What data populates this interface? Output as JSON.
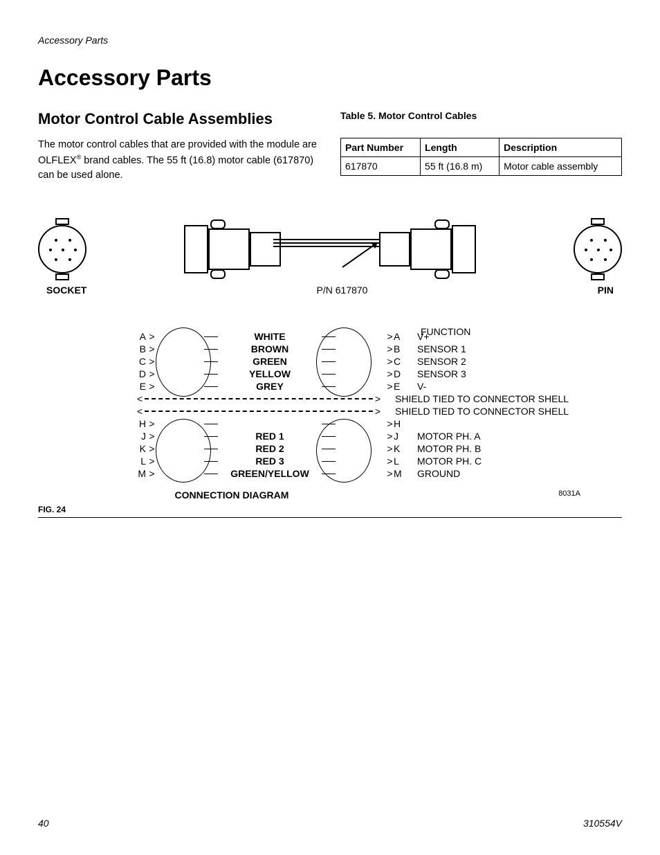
{
  "header_label": "Accessory Parts",
  "h1": "Accessory Parts",
  "h2": "Motor Control Cable Assemblies",
  "paragraph_pre": "The motor control cables that are provided with the module are OLFLEX",
  "paragraph_sup": "®",
  "paragraph_post": " brand cables. The 55 ft (16.8) motor cable (617870) can be used alone.",
  "table_caption": "Table 5. Motor Control Cables",
  "table": {
    "columns": [
      "Part Number",
      "Length",
      "Description"
    ],
    "rows": [
      [
        "617870",
        "55 ft (16.8 m)",
        "Motor cable assembly"
      ]
    ]
  },
  "socket_label": "SOCKET",
  "pin_label": "PIN",
  "pn_label": "P/N 617870",
  "function_header": "FUNCTION",
  "wires_group1": [
    {
      "pin": "A",
      "color": "WHITE",
      "func": "V+"
    },
    {
      "pin": "B",
      "color": "BROWN",
      "func": "SENSOR 1"
    },
    {
      "pin": "C",
      "color": "GREEN",
      "func": "SENSOR 2"
    },
    {
      "pin": "D",
      "color": "YELLOW",
      "func": "SENSOR 3"
    },
    {
      "pin": "E",
      "color": "GREY",
      "func": "V-"
    }
  ],
  "shield_text": "SHIELD TIED TO CONNECTOR SHELL",
  "wires_group2": [
    {
      "pin": "H",
      "color": "",
      "func": ""
    },
    {
      "pin": "J",
      "color": "RED 1",
      "func": "MOTOR PH. A"
    },
    {
      "pin": "K",
      "color": "RED 2",
      "func": "MOTOR PH. B"
    },
    {
      "pin": "L",
      "color": "RED 3",
      "func": "MOTOR PH. C"
    },
    {
      "pin": "M",
      "color": "GREEN/YELLOW",
      "func": "GROUND"
    }
  ],
  "conn_diagram_label": "CONNECTION DIAGRAM",
  "fig_ref": "8031A",
  "fig_label": "FIG. 24",
  "footer_page": "40",
  "footer_doc": "310554V",
  "colors": {
    "text": "#000000",
    "background": "#ffffff",
    "border": "#000000"
  },
  "fontsizes": {
    "h1": 32,
    "h2": 22,
    "body": 14.5,
    "table": 14,
    "small": 12
  }
}
